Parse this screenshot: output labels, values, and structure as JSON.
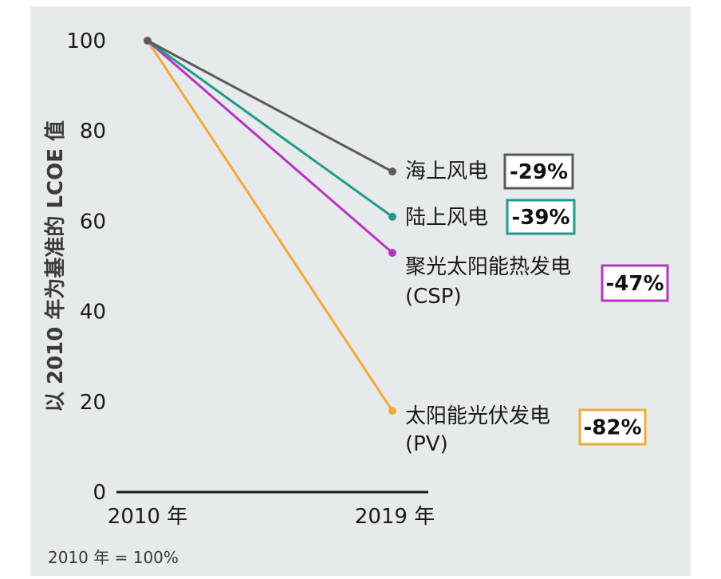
{
  "colors": {
    "background": "#e7eaea",
    "axis": "#1a1a1a",
    "text": "#1a1a1a",
    "footnote": "#3a3a3a"
  },
  "chart_data": {
    "type": "line",
    "title": "",
    "xlabel": "",
    "ylabel": "以 2010 年为基准的 LCOE 值",
    "categories": [
      "2010 年",
      "2019 年"
    ],
    "ylim": [
      0,
      100
    ],
    "yticks": [
      0,
      20,
      40,
      60,
      80,
      100
    ],
    "grid": false,
    "legend": "right-inline",
    "footnote": "2010 年 = 100%",
    "series": [
      {
        "name": "海上风电",
        "sublabel": "",
        "values": [
          100,
          71
        ],
        "change": "-29%",
        "color": "#5a5a5a"
      },
      {
        "name": "陆上风电",
        "sublabel": "",
        "values": [
          100,
          61
        ],
        "change": "-39%",
        "color": "#1f9a8c"
      },
      {
        "name": "聚光太阳能热发电",
        "sublabel": "(CSP)",
        "values": [
          100,
          53
        ],
        "change": "-47%",
        "color": "#b435c2"
      },
      {
        "name": "太阳能光伏发电",
        "sublabel": "(PV)",
        "values": [
          100,
          18
        ],
        "change": "-82%",
        "color": "#f0a93c"
      }
    ]
  }
}
